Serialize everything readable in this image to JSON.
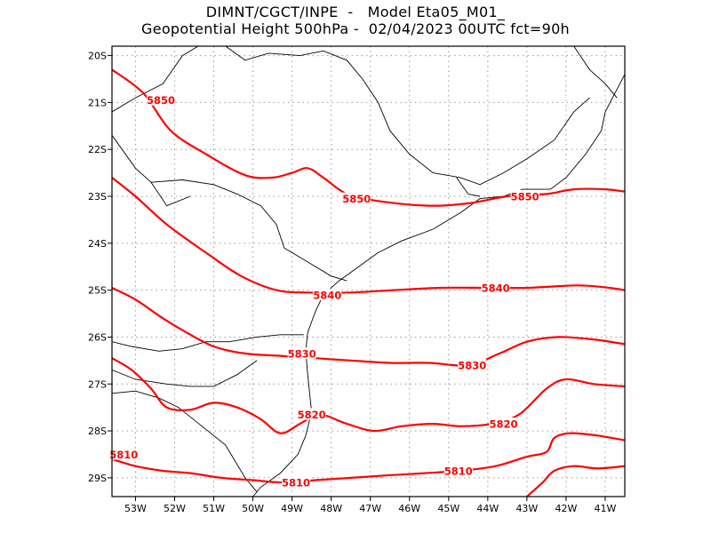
{
  "title": {
    "line1": "DIMNT/CGCT/INPE  -   Model Eta05_M01_",
    "line2": "Geopotential Height 500hPa -  02/04/2023 00UTC fct=90h"
  },
  "axes": {
    "lon_ticks": [
      "53W",
      "52W",
      "51W",
      "50W",
      "49W",
      "48W",
      "47W",
      "46W",
      "45W",
      "44W",
      "43W",
      "42W",
      "41W"
    ],
    "lat_ticks": [
      "20S",
      "21S",
      "22S",
      "23S",
      "24S",
      "25S",
      "26S",
      "27S",
      "28S",
      "29S"
    ],
    "lon_range": [
      -53.6,
      -40.5
    ],
    "lat_range": [
      -29.4,
      -19.8
    ]
  },
  "contour_color": "#ff0000",
  "contours": [
    {
      "label": "5850",
      "label_positions": [
        [
          -52.35,
          -20.95
        ],
        [
          -47.35,
          -23.05
        ],
        [
          -43.05,
          -23.0
        ]
      ],
      "points": [
        [
          -53.6,
          -20.3
        ],
        [
          -52.8,
          -20.8
        ],
        [
          -52.1,
          -21.6
        ],
        [
          -51.2,
          -22.1
        ],
        [
          -50.2,
          -22.55
        ],
        [
          -49.5,
          -22.6
        ],
        [
          -49.0,
          -22.5
        ],
        [
          -48.6,
          -22.4
        ],
        [
          -48.2,
          -22.6
        ],
        [
          -47.6,
          -22.95
        ],
        [
          -46.8,
          -23.1
        ],
        [
          -45.5,
          -23.2
        ],
        [
          -44.5,
          -23.15
        ],
        [
          -43.5,
          -23.0
        ],
        [
          -42.5,
          -22.95
        ],
        [
          -41.8,
          -22.85
        ],
        [
          -41.0,
          -22.85
        ],
        [
          -40.5,
          -22.9
        ]
      ]
    },
    {
      "label": "5840",
      "label_positions": [
        [
          -48.1,
          -25.1
        ],
        [
          -43.8,
          -24.95
        ]
      ],
      "points": [
        [
          -53.6,
          -22.6
        ],
        [
          -53.0,
          -23.0
        ],
        [
          -52.2,
          -23.6
        ],
        [
          -51.2,
          -24.2
        ],
        [
          -50.3,
          -24.7
        ],
        [
          -49.4,
          -25.0
        ],
        [
          -48.6,
          -25.05
        ],
        [
          -47.5,
          -25.05
        ],
        [
          -46.4,
          -25.0
        ],
        [
          -45.2,
          -24.95
        ],
        [
          -44.0,
          -24.95
        ],
        [
          -43.0,
          -24.95
        ],
        [
          -41.7,
          -24.9
        ],
        [
          -40.9,
          -24.95
        ],
        [
          -40.5,
          -25.0
        ]
      ]
    },
    {
      "label": "5830",
      "label_positions": [
        [
          -48.75,
          -26.35
        ],
        [
          -44.4,
          -26.6
        ]
      ],
      "points": [
        [
          -53.6,
          -24.95
        ],
        [
          -53.0,
          -25.2
        ],
        [
          -52.3,
          -25.6
        ],
        [
          -51.7,
          -25.9
        ],
        [
          -51.0,
          -26.2
        ],
        [
          -50.2,
          -26.35
        ],
        [
          -49.3,
          -26.4
        ],
        [
          -48.4,
          -26.45
        ],
        [
          -47.5,
          -26.5
        ],
        [
          -46.5,
          -26.55
        ],
        [
          -45.5,
          -26.55
        ],
        [
          -44.5,
          -26.6
        ],
        [
          -43.7,
          -26.35
        ],
        [
          -43.0,
          -26.1
        ],
        [
          -42.2,
          -26.0
        ],
        [
          -41.3,
          -26.05
        ],
        [
          -40.5,
          -26.15
        ]
      ]
    },
    {
      "label": "5820",
      "label_positions": [
        [
          -48.5,
          -27.65
        ],
        [
          -43.6,
          -27.85
        ]
      ],
      "points": [
        [
          -53.6,
          -26.45
        ],
        [
          -53.1,
          -26.7
        ],
        [
          -52.6,
          -27.1
        ],
        [
          -52.2,
          -27.5
        ],
        [
          -51.6,
          -27.55
        ],
        [
          -51.0,
          -27.4
        ],
        [
          -50.4,
          -27.5
        ],
        [
          -49.8,
          -27.75
        ],
        [
          -49.3,
          -28.05
        ],
        [
          -48.8,
          -27.85
        ],
        [
          -48.3,
          -27.65
        ],
        [
          -47.6,
          -27.85
        ],
        [
          -46.9,
          -28.0
        ],
        [
          -46.2,
          -27.9
        ],
        [
          -45.4,
          -27.85
        ],
        [
          -44.7,
          -27.9
        ],
        [
          -43.9,
          -27.85
        ],
        [
          -43.2,
          -27.65
        ],
        [
          -42.5,
          -27.1
        ],
        [
          -42.0,
          -26.9
        ],
        [
          -41.3,
          -27.0
        ],
        [
          -40.5,
          -27.05
        ]
      ]
    },
    {
      "label": "5810",
      "label_positions": [
        [
          -53.3,
          -28.5
        ],
        [
          -48.9,
          -29.1
        ],
        [
          -44.75,
          -28.85
        ]
      ],
      "points": [
        [
          -53.6,
          -28.6
        ],
        [
          -53.0,
          -28.75
        ],
        [
          -52.3,
          -28.85
        ],
        [
          -51.6,
          -28.9
        ],
        [
          -50.8,
          -29.0
        ],
        [
          -50.0,
          -29.05
        ],
        [
          -49.2,
          -29.1
        ],
        [
          -48.4,
          -29.05
        ],
        [
          -47.5,
          -29.0
        ],
        [
          -46.6,
          -28.95
        ],
        [
          -45.6,
          -28.9
        ],
        [
          -44.7,
          -28.85
        ],
        [
          -43.8,
          -28.75
        ],
        [
          -43.0,
          -28.55
        ],
        [
          -42.5,
          -28.45
        ],
        [
          -42.3,
          -28.15
        ],
        [
          -41.9,
          -28.05
        ],
        [
          -41.2,
          -28.1
        ],
        [
          -40.5,
          -28.2
        ]
      ]
    },
    {
      "label": "",
      "label_positions": [],
      "points": [
        [
          -43.0,
          -29.4
        ],
        [
          -42.6,
          -29.1
        ],
        [
          -42.3,
          -28.85
        ],
        [
          -41.8,
          -28.75
        ],
        [
          -41.2,
          -28.8
        ],
        [
          -40.5,
          -28.75
        ]
      ]
    }
  ]
}
